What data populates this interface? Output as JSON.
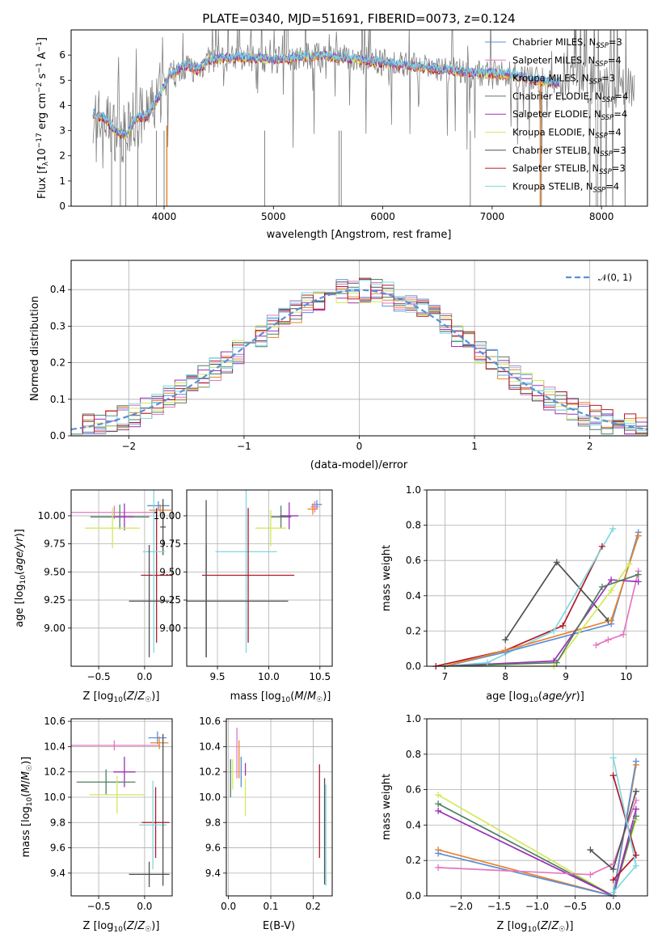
{
  "colors": {
    "chabrier_miles": "#5a8fd6",
    "salpeter_miles": "#e377c2",
    "kroupa_miles": "#e8842e",
    "chabrier_elodie": "#4f7f63",
    "salpeter_elodie": "#9b30b8",
    "kroupa_elodie": "#d4e85a",
    "chabrier_stelib": "#505050",
    "salpeter_stelib": "#b2182b",
    "kroupa_stelib": "#7fd8e0",
    "data": "#808080"
  },
  "chart_data": [
    {
      "id": "spectrum",
      "type": "line",
      "title": "PLATE=0340, MJD=51691, FIBERID=0073, z=0.124",
      "xlabel": "wavelength [Angstrom, rest frame]",
      "ylabel": "Flux [f_λ 10^-17 erg cm^-2 s^-1 A^-1]",
      "xlim": [
        3150,
        8420
      ],
      "ylim": [
        0,
        7
      ],
      "xticks": [
        4000,
        5000,
        6000,
        7000,
        8000
      ],
      "yticks": [
        0,
        1,
        2,
        3,
        4,
        5,
        6
      ],
      "legend": "right",
      "legend_entries": [
        {
          "label": "Chabrier MILES, N",
          "sub": "SSP",
          "suffix": "=3",
          "color_key": "chabrier_miles"
        },
        {
          "label": "Salpeter MILES, N",
          "sub": "SSP",
          "suffix": "=4",
          "color_key": "salpeter_miles"
        },
        {
          "label": "Kroupa MILES, N",
          "sub": "SSP",
          "suffix": "=3",
          "color_key": "kroupa_miles"
        },
        {
          "label": "Chabrier ELODIE, N",
          "sub": "SSP",
          "suffix": "=4",
          "color_key": "chabrier_elodie"
        },
        {
          "label": "Salpeter ELODIE, N",
          "sub": "SSP",
          "suffix": "=4",
          "color_key": "salpeter_elodie"
        },
        {
          "label": "Kroupa ELODIE, N",
          "sub": "SSP",
          "suffix": "=4",
          "color_key": "kroupa_elodie"
        },
        {
          "label": "Chabrier STELIB, N",
          "sub": "SSP",
          "suffix": "=3",
          "color_key": "chabrier_stelib"
        },
        {
          "label": "Salpeter STELIB, N",
          "sub": "SSP",
          "suffix": "=3",
          "color_key": "salpeter_stelib"
        },
        {
          "label": "Kroupa STELIB, N",
          "sub": "SSP",
          "suffix": "=4",
          "color_key": "kroupa_stelib"
        }
      ],
      "continuum": [
        [
          3350,
          3.7
        ],
        [
          3450,
          3.5
        ],
        [
          3550,
          3.0
        ],
        [
          3650,
          2.8
        ],
        [
          3750,
          3.5
        ],
        [
          3850,
          3.6
        ],
        [
          3950,
          4.3
        ],
        [
          4050,
          5.2
        ],
        [
          4200,
          5.6
        ],
        [
          4300,
          5.4
        ],
        [
          4400,
          5.8
        ],
        [
          4600,
          5.9
        ],
        [
          4800,
          5.9
        ],
        [
          5000,
          5.8
        ],
        [
          5200,
          5.9
        ],
        [
          5400,
          6.0
        ],
        [
          5600,
          5.9
        ],
        [
          5800,
          5.8
        ],
        [
          6000,
          5.7
        ],
        [
          6200,
          5.6
        ],
        [
          6400,
          5.5
        ],
        [
          6600,
          5.4
        ],
        [
          6800,
          5.3
        ],
        [
          7000,
          5.3
        ],
        [
          7200,
          5.2
        ],
        [
          7400,
          5.0
        ],
        [
          7600,
          4.9
        ]
      ],
      "deep_lines": [
        3520,
        3600,
        3650,
        3760,
        3930,
        4000,
        4920,
        5600,
        5620,
        6800,
        7450
      ]
    },
    {
      "id": "residuals",
      "type": "bar",
      "xlabel": "(data-model)/error",
      "ylabel": "Normed distribution",
      "xlim": [
        -2.5,
        2.5
      ],
      "ylim": [
        0,
        0.48
      ],
      "xticks": [
        -2,
        -1,
        0,
        1,
        2
      ],
      "yticks": [
        0.0,
        0.1,
        0.2,
        0.3,
        0.4
      ],
      "legend_label": "𝒩(0, 1)",
      "legend": "top-right",
      "bin_width": 0.1
    },
    {
      "id": "age_vs_Z",
      "type": "scatter",
      "xlabel": "Z [log10(Z/Z☉)]",
      "ylabel": "age  [log10(age/yr)]",
      "xlim": [
        -0.8,
        0.3
      ],
      "ylim": [
        8.66,
        10.23
      ],
      "xticks": [
        -0.5,
        0.0
      ],
      "yticks": [
        9.0,
        9.25,
        9.5,
        9.75,
        10.0
      ],
      "points": [
        {
          "k": "chabrier_miles",
          "x": 0.15,
          "xe": 0.12,
          "y": 10.09,
          "ye": 0.04
        },
        {
          "k": "salpeter_miles",
          "x": -0.33,
          "xe": 0.47,
          "y": 10.03,
          "ye": 0.06
        },
        {
          "k": "kroupa_miles",
          "x": 0.17,
          "xe": 0.12,
          "y": 10.05,
          "ye": 0.05
        },
        {
          "k": "chabrier_elodie",
          "x": -0.27,
          "xe": 0.32,
          "y": 9.99,
          "ye": 0.11
        },
        {
          "k": "salpeter_elodie",
          "x": -0.22,
          "xe": 0.1,
          "y": 9.99,
          "ye": 0.12
        },
        {
          "k": "kroupa_elodie",
          "x": -0.35,
          "xe": 0.3,
          "y": 9.89,
          "ye": 0.18
        },
        {
          "k": "chabrier_stelib",
          "x": 0.2,
          "xe": 0.03,
          "y": 9.9,
          "ye": 0.25
        },
        {
          "k": "salpeter_stelib",
          "x": 0.13,
          "xe": 0.17,
          "y": 9.47,
          "ye": 0.6
        },
        {
          "k": "kroupa_stelib",
          "x": 0.1,
          "xe": 0.12,
          "y": 9.68,
          "ye": 0.9
        },
        {
          "k": "chabrier_stelib",
          "x": 0.05,
          "xe": 0.22,
          "y": 9.24,
          "ye": 0.5
        }
      ]
    },
    {
      "id": "age_vs_mass",
      "type": "scatter",
      "xlabel": "mass [log10(M/M☉)]",
      "ylabel": "",
      "xlim": [
        9.2,
        10.62
      ],
      "ylim": [
        8.66,
        10.23
      ],
      "xticks": [
        9.5,
        10.0,
        10.5
      ],
      "yticks": [
        9.0,
        9.25,
        9.5,
        9.75,
        10.0
      ],
      "points": [
        {
          "k": "chabrier_miles",
          "x": 10.47,
          "xe": 0.05,
          "y": 10.1,
          "ye": 0.04
        },
        {
          "k": "salpeter_miles",
          "x": 10.45,
          "xe": 0.04,
          "y": 10.08,
          "ye": 0.05
        },
        {
          "k": "kroupa_miles",
          "x": 10.43,
          "xe": 0.05,
          "y": 10.06,
          "ye": 0.05
        },
        {
          "k": "chabrier_elodie",
          "x": 10.12,
          "xe": 0.1,
          "y": 9.99,
          "ye": 0.1
        },
        {
          "k": "salpeter_elodie",
          "x": 10.2,
          "xe": 0.09,
          "y": 10.0,
          "ye": 0.12
        },
        {
          "k": "kroupa_elodie",
          "x": 10.02,
          "xe": 0.15,
          "y": 9.89,
          "ye": 0.16
        },
        {
          "k": "kroupa_stelib",
          "x": 9.78,
          "xe": 0.3,
          "y": 9.68,
          "ye": 0.9
        },
        {
          "k": "salpeter_stelib",
          "x": 9.8,
          "xe": 0.45,
          "y": 9.47,
          "ye": 0.6
        },
        {
          "k": "chabrier_stelib",
          "x": 9.39,
          "xe": 0.8,
          "y": 9.24,
          "ye": 0.5
        },
        {
          "k": "chabrier_stelib",
          "x": 9.39,
          "xe": 0.0,
          "y": 9.44,
          "ye": 0.7
        }
      ]
    },
    {
      "id": "weight_vs_age",
      "type": "line",
      "xlabel": "age  [log10(age/yr)]",
      "ylabel": "mass weight",
      "xlim": [
        6.7,
        10.35
      ],
      "ylim": [
        0,
        1.0
      ],
      "xticks": [
        7,
        8,
        9,
        10
      ],
      "yticks": [
        0.0,
        0.2,
        0.4,
        0.6,
        0.8,
        1.0
      ],
      "series": [
        {
          "k": "chabrier_stelib",
          "x": [
            8.0,
            8.85,
            9.7
          ],
          "y": [
            0.15,
            0.59,
            0.26
          ]
        },
        {
          "k": "salpeter_stelib",
          "x": [
            6.85,
            8.0,
            8.95,
            9.6
          ],
          "y": [
            0.0,
            0.09,
            0.23,
            0.68
          ]
        },
        {
          "k": "kroupa_stelib",
          "x": [
            7.0,
            7.7,
            8.8,
            9.78
          ],
          "y": [
            0.0,
            0.02,
            0.2,
            0.78
          ]
        },
        {
          "k": "chabrier_miles",
          "x": [
            7.0,
            8.0,
            9.75,
            10.2
          ],
          "y": [
            0.0,
            0.08,
            0.24,
            0.76
          ]
        },
        {
          "k": "kroupa_miles",
          "x": [
            7.0,
            8.0,
            9.75,
            10.2
          ],
          "y": [
            0.0,
            0.09,
            0.26,
            0.74
          ]
        },
        {
          "k": "salpeter_miles",
          "x": [
            9.5,
            9.7,
            9.95,
            10.2
          ],
          "y": [
            0.12,
            0.15,
            0.18,
            0.54
          ]
        },
        {
          "k": "salpeter_elodie",
          "x": [
            7.0,
            8.8,
            9.75,
            10.2
          ],
          "y": [
            0.0,
            0.03,
            0.49,
            0.48
          ]
        },
        {
          "k": "kroupa_elodie",
          "x": [
            7.0,
            8.8,
            9.75,
            10.05
          ],
          "y": [
            0.0,
            0.0,
            0.43,
            0.58
          ]
        },
        {
          "k": "chabrier_elodie",
          "x": [
            7.0,
            8.85,
            9.6,
            10.2
          ],
          "y": [
            0.0,
            0.02,
            0.45,
            0.52
          ]
        }
      ]
    },
    {
      "id": "mass_vs_Z",
      "type": "scatter",
      "xlabel": "Z [log10(Z/Z☉)]",
      "ylabel": "mass [log10(M/M☉)]",
      "xlim": [
        -0.8,
        0.3
      ],
      "ylim": [
        9.22,
        10.62
      ],
      "xticks": [
        -0.5,
        0.0
      ],
      "yticks": [
        9.4,
        9.6,
        9.8,
        10.0,
        10.2,
        10.4,
        10.6
      ],
      "points": [
        {
          "k": "chabrier_miles",
          "x": 0.14,
          "xe": 0.1,
          "y": 10.47,
          "ye": 0.05
        },
        {
          "k": "salpeter_miles",
          "x": -0.33,
          "xe": 0.5,
          "y": 10.41,
          "ye": 0.04
        },
        {
          "k": "kroupa_miles",
          "x": 0.16,
          "xe": 0.1,
          "y": 10.43,
          "ye": 0.05
        },
        {
          "k": "salpeter_elodie",
          "x": -0.22,
          "xe": 0.12,
          "y": 10.2,
          "ye": 0.12
        },
        {
          "k": "chabrier_elodie",
          "x": -0.42,
          "xe": 0.32,
          "y": 10.12,
          "ye": 0.1
        },
        {
          "k": "kroupa_elodie",
          "x": -0.3,
          "xe": 0.3,
          "y": 10.02,
          "ye": 0.15
        },
        {
          "k": "salpeter_stelib",
          "x": 0.12,
          "xe": 0.15,
          "y": 9.8,
          "ye": 0.28
        },
        {
          "k": "kroupa_stelib",
          "x": 0.09,
          "xe": 0.15,
          "y": 9.78,
          "ye": 0.35
        },
        {
          "k": "chabrier_stelib",
          "x": 0.05,
          "xe": 0.22,
          "y": 9.39,
          "ye": 0.1
        },
        {
          "k": "chabrier_stelib",
          "x": 0.2,
          "xe": 0.0,
          "y": 9.9,
          "ye": 0.6
        }
      ]
    },
    {
      "id": "ebv",
      "type": "scatter",
      "xlabel": "E(B-V)",
      "ylabel": "",
      "xlim": [
        -0.005,
        0.245
      ],
      "ylim": [
        9.22,
        10.62
      ],
      "xticks": [
        0.0,
        0.1,
        0.2
      ],
      "yticks": [
        9.4,
        9.6,
        9.8,
        10.0,
        10.2,
        10.4,
        10.6
      ],
      "points": [
        {
          "k": "chabrier_elodie",
          "x": 0.005,
          "ye": 0.15,
          "y": 10.15
        },
        {
          "k": "kroupa_elodie",
          "x": 0.01,
          "ye": 0.12,
          "y": 10.18
        },
        {
          "k": "salpeter_miles",
          "x": 0.02,
          "ye": 0.2,
          "y": 10.35
        },
        {
          "k": "kroupa_miles",
          "x": 0.025,
          "ye": 0.15,
          "y": 10.3
        },
        {
          "k": "chabrier_miles",
          "x": 0.03,
          "ye": 0.12,
          "y": 10.2
        },
        {
          "k": "salpeter_elodie",
          "x": 0.04,
          "ye": 0.05,
          "y": 10.22
        },
        {
          "k": "kroupa_elodie",
          "x": 0.04,
          "ye": 0.15,
          "y": 10.0
        },
        {
          "k": "salpeter_stelib",
          "x": 0.215,
          "ye": 0.37,
          "y": 9.89
        },
        {
          "k": "chabrier_stelib",
          "x": 0.227,
          "ye": 0.42,
          "y": 9.73
        },
        {
          "k": "kroupa_stelib",
          "x": 0.23,
          "ye": 0.4,
          "y": 9.7
        }
      ]
    },
    {
      "id": "weight_vs_Z",
      "type": "line",
      "xlabel": "Z [log10(Z/Z☉)]",
      "ylabel": "mass weight",
      "xlim": [
        -2.45,
        0.45
      ],
      "ylim": [
        0,
        1.0
      ],
      "xticks": [
        -2.0,
        -1.5,
        -1.0,
        -0.5,
        0.0
      ],
      "yticks": [
        0.0,
        0.2,
        0.4,
        0.6,
        0.8,
        1.0
      ],
      "series": [
        {
          "k": "kroupa_elodie",
          "x": [
            -2.3,
            0.0,
            0.3
          ],
          "y": [
            0.57,
            0.0,
            0.43
          ]
        },
        {
          "k": "chabrier_elodie",
          "x": [
            -2.3,
            0.0,
            0.3
          ],
          "y": [
            0.52,
            0.0,
            0.45
          ]
        },
        {
          "k": "salpeter_elodie",
          "x": [
            -2.3,
            0.0,
            0.3
          ],
          "y": [
            0.48,
            0.0,
            0.49
          ]
        },
        {
          "k": "kroupa_miles",
          "x": [
            -2.3,
            0.0,
            0.3
          ],
          "y": [
            0.26,
            0.0,
            0.74
          ]
        },
        {
          "k": "chabrier_miles",
          "x": [
            -2.3,
            0.0,
            0.3
          ],
          "y": [
            0.24,
            0.0,
            0.76
          ]
        },
        {
          "k": "salpeter_miles",
          "x": [
            -2.3,
            -0.3,
            0.0,
            0.3
          ],
          "y": [
            0.16,
            0.12,
            0.18,
            0.54
          ]
        },
        {
          "k": "chabrier_stelib",
          "x": [
            -0.3,
            0.0,
            0.3
          ],
          "y": [
            0.26,
            0.15,
            0.59
          ]
        },
        {
          "k": "salpeter_stelib",
          "x": [
            0.0,
            0.3,
            0.0
          ],
          "y": [
            0.68,
            0.23,
            0.09
          ]
        },
        {
          "k": "kroupa_stelib",
          "x": [
            0.0,
            0.3,
            0.0
          ],
          "y": [
            0.78,
            0.17,
            0.02
          ]
        }
      ]
    }
  ]
}
